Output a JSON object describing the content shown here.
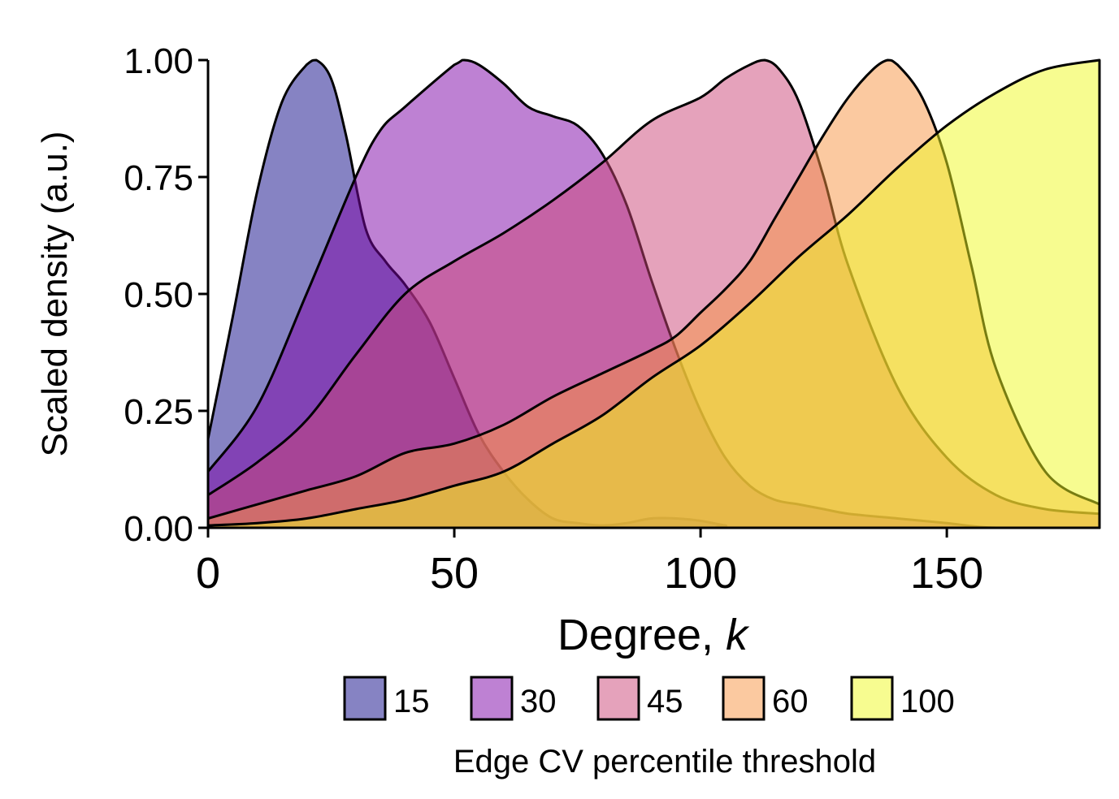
{
  "chart_data": {
    "type": "area",
    "xlabel_main": "Degree, ",
    "xlabel_italic": "k",
    "ylabel": "Scaled density (a.u.)",
    "xlim": [
      0,
      181
    ],
    "ylim": [
      0,
      1
    ],
    "x_ticks": [
      0,
      50,
      100,
      150
    ],
    "x_tick_labels": [
      "0",
      "50",
      "100",
      "150"
    ],
    "y_ticks": [
      0,
      0.25,
      0.5,
      0.75,
      1.0
    ],
    "y_tick_labels": [
      "0.00",
      "0.25",
      "0.50",
      "0.75",
      "1.00"
    ],
    "grid": false,
    "legend_title": "Edge CV percentile threshold",
    "legend_position": "bottom",
    "series": [
      {
        "name": "15",
        "color": "#0D0887",
        "x": [
          0,
          5,
          10,
          15,
          20,
          22,
          25,
          28,
          32,
          36,
          40,
          45,
          50,
          55,
          60,
          65,
          70,
          75,
          80,
          85,
          90,
          95,
          100,
          105,
          110,
          181
        ],
        "y": [
          0.19,
          0.45,
          0.72,
          0.91,
          0.99,
          1.0,
          0.96,
          0.84,
          0.64,
          0.57,
          0.52,
          0.44,
          0.32,
          0.2,
          0.12,
          0.06,
          0.02,
          0.01,
          0.005,
          0.01,
          0.02,
          0.02,
          0.015,
          0.005,
          0.0,
          0.0
        ]
      },
      {
        "name": "30",
        "color": "#7E03A8",
        "x": [
          0,
          10,
          20,
          30,
          35,
          40,
          50,
          52,
          55,
          60,
          65,
          70,
          75,
          80,
          85,
          90,
          95,
          100,
          105,
          110,
          115,
          120,
          125,
          130,
          140,
          150,
          160,
          181
        ],
        "y": [
          0.12,
          0.26,
          0.5,
          0.75,
          0.85,
          0.9,
          0.99,
          1.0,
          0.99,
          0.95,
          0.9,
          0.88,
          0.86,
          0.8,
          0.69,
          0.53,
          0.38,
          0.25,
          0.15,
          0.09,
          0.06,
          0.05,
          0.04,
          0.03,
          0.02,
          0.01,
          0.0,
          0.0
        ]
      },
      {
        "name": "45",
        "color": "#CC4678",
        "x": [
          0,
          10,
          20,
          30,
          40,
          50,
          60,
          70,
          80,
          90,
          100,
          105,
          110,
          113,
          116,
          120,
          125,
          130,
          140,
          150,
          160,
          170,
          181
        ],
        "y": [
          0.07,
          0.14,
          0.23,
          0.37,
          0.5,
          0.57,
          0.63,
          0.7,
          0.78,
          0.87,
          0.92,
          0.96,
          0.99,
          1.0,
          0.98,
          0.91,
          0.75,
          0.56,
          0.3,
          0.15,
          0.07,
          0.04,
          0.03
        ]
      },
      {
        "name": "60",
        "color": "#F89441",
        "x": [
          0,
          10,
          20,
          30,
          40,
          50,
          60,
          70,
          80,
          90,
          95,
          100,
          105,
          110,
          115,
          120,
          125,
          130,
          135,
          138,
          140,
          145,
          150,
          155,
          160,
          170,
          181
        ],
        "y": [
          0.02,
          0.05,
          0.08,
          0.11,
          0.16,
          0.18,
          0.22,
          0.28,
          0.33,
          0.38,
          0.41,
          0.46,
          0.51,
          0.57,
          0.66,
          0.75,
          0.84,
          0.92,
          0.98,
          1.0,
          0.99,
          0.92,
          0.78,
          0.56,
          0.34,
          0.12,
          0.05
        ]
      },
      {
        "name": "100",
        "color": "#F0F921",
        "x": [
          0,
          10,
          20,
          30,
          40,
          50,
          60,
          70,
          80,
          90,
          100,
          110,
          120,
          130,
          140,
          150,
          160,
          170,
          181
        ],
        "y": [
          0.005,
          0.01,
          0.02,
          0.04,
          0.06,
          0.09,
          0.12,
          0.18,
          0.24,
          0.32,
          0.39,
          0.48,
          0.58,
          0.67,
          0.77,
          0.86,
          0.93,
          0.98,
          1.0
        ]
      }
    ]
  }
}
